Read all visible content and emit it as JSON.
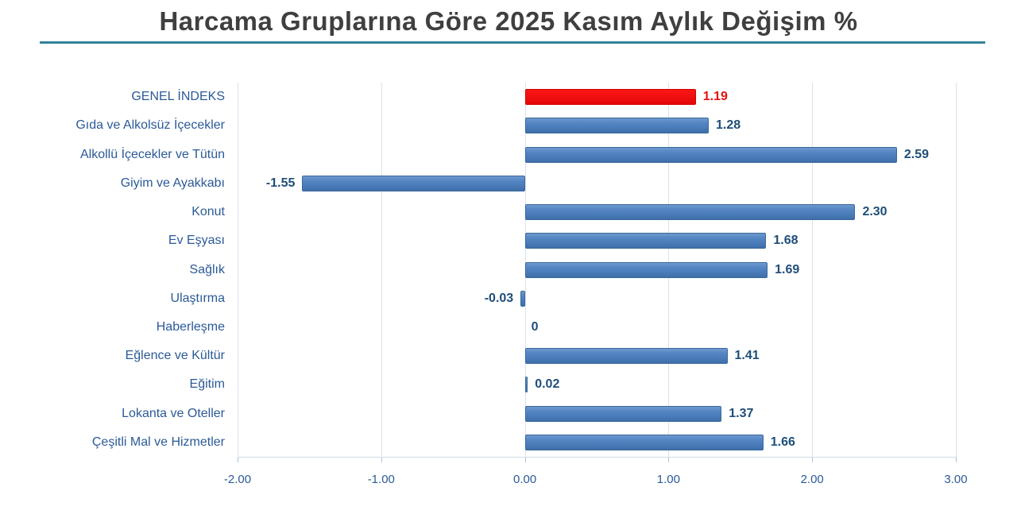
{
  "title": "Harcama Gruplarına Göre 2025 Kasım Aylık Değişim %",
  "colors": {
    "bar_blue": "#4f81bd",
    "bar_blue_border": "#3a689b",
    "bar_red": "#ee0f0f",
    "bar_red_border": "#d40000",
    "category_text": "#2b5a97",
    "value_text": "#1f4e79",
    "value_text_highlight": "#e31212",
    "title_text": "#3f3f3f",
    "title_underline": "#31849b",
    "gridline": "#d9e2ef"
  },
  "chart_data": {
    "type": "bar",
    "orientation": "horizontal",
    "title": "Harcama Gruplarına Göre 2025 Kasım Aylık Değişim %",
    "categories": [
      "GENEL İNDEKS",
      "Gıda ve Alkolsüz İçecekler",
      "Alkollü İçecekler ve Tütün",
      "Giyim ve Ayakkabı",
      "Konut",
      "Ev Eşyası",
      "Sağlık",
      "Ulaştırma",
      "Haberleşme",
      "Eğlence ve Kültür",
      "Eğitim",
      "Lokanta ve Oteller",
      "Çeşitli Mal ve Hizmetler"
    ],
    "values": [
      1.19,
      1.28,
      2.59,
      -1.55,
      2.3,
      1.68,
      1.69,
      -0.03,
      0,
      1.41,
      0.02,
      1.37,
      1.66
    ],
    "value_labels": [
      "1.19",
      "1.28",
      "2.59",
      "-1.55",
      "2.30",
      "1.68",
      "1.69",
      "-0.03",
      "0",
      "1.41",
      "0.02",
      "1.37",
      "1.66"
    ],
    "highlight_index": 0,
    "highlight_category": "GENEL İNDEKS",
    "xlabel": "",
    "ylabel": "",
    "xlim": [
      -2.0,
      3.0
    ],
    "x_ticks": [
      "-2.00",
      "-1.00",
      "0.00",
      "1.00",
      "2.00",
      "3.00"
    ],
    "x_tick_values": [
      -2,
      -1,
      0,
      1,
      2,
      3
    ],
    "grid": true,
    "legend": false
  }
}
